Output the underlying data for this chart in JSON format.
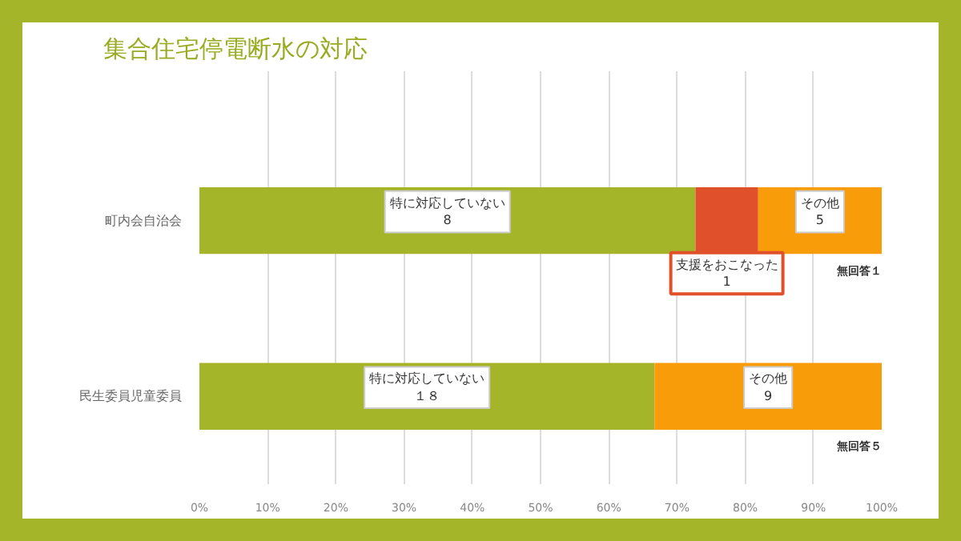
{
  "chart_data": {
    "type": "bar",
    "orientation": "horizontal",
    "stacked": true,
    "title": "集合住宅停電断水の対応",
    "categories": [
      "町内会自治会",
      "民生委員児童委員"
    ],
    "series": [
      {
        "name": "特に対応していない",
        "color": "#a5b52a",
        "values": [
          72.7,
          66.7
        ]
      },
      {
        "name": "支援をおこなった",
        "color": "#e0502a",
        "values": [
          9.2,
          null
        ]
      },
      {
        "name": "その他",
        "color": "#f89c0a",
        "values": [
          18.1,
          33.3
        ]
      }
    ],
    "xlim": [
      0,
      100
    ],
    "xticks": [
      {
        "value": 0,
        "label": "0%"
      },
      {
        "value": 10,
        "label": "10%"
      },
      {
        "value": 20,
        "label": "20%"
      },
      {
        "value": 30,
        "label": "30%"
      },
      {
        "value": 40,
        "label": "40%"
      },
      {
        "value": 50,
        "label": "50%"
      },
      {
        "value": 60,
        "label": "60%"
      },
      {
        "value": 70,
        "label": "70%"
      },
      {
        "value": 80,
        "label": "80%"
      },
      {
        "value": 90,
        "label": "90%"
      },
      {
        "value": 100,
        "label": "100%"
      }
    ],
    "grid": "x",
    "annotations": [
      "8",
      "１８",
      "1",
      "5",
      "9",
      "無回答１",
      "無回答５"
    ]
  }
}
